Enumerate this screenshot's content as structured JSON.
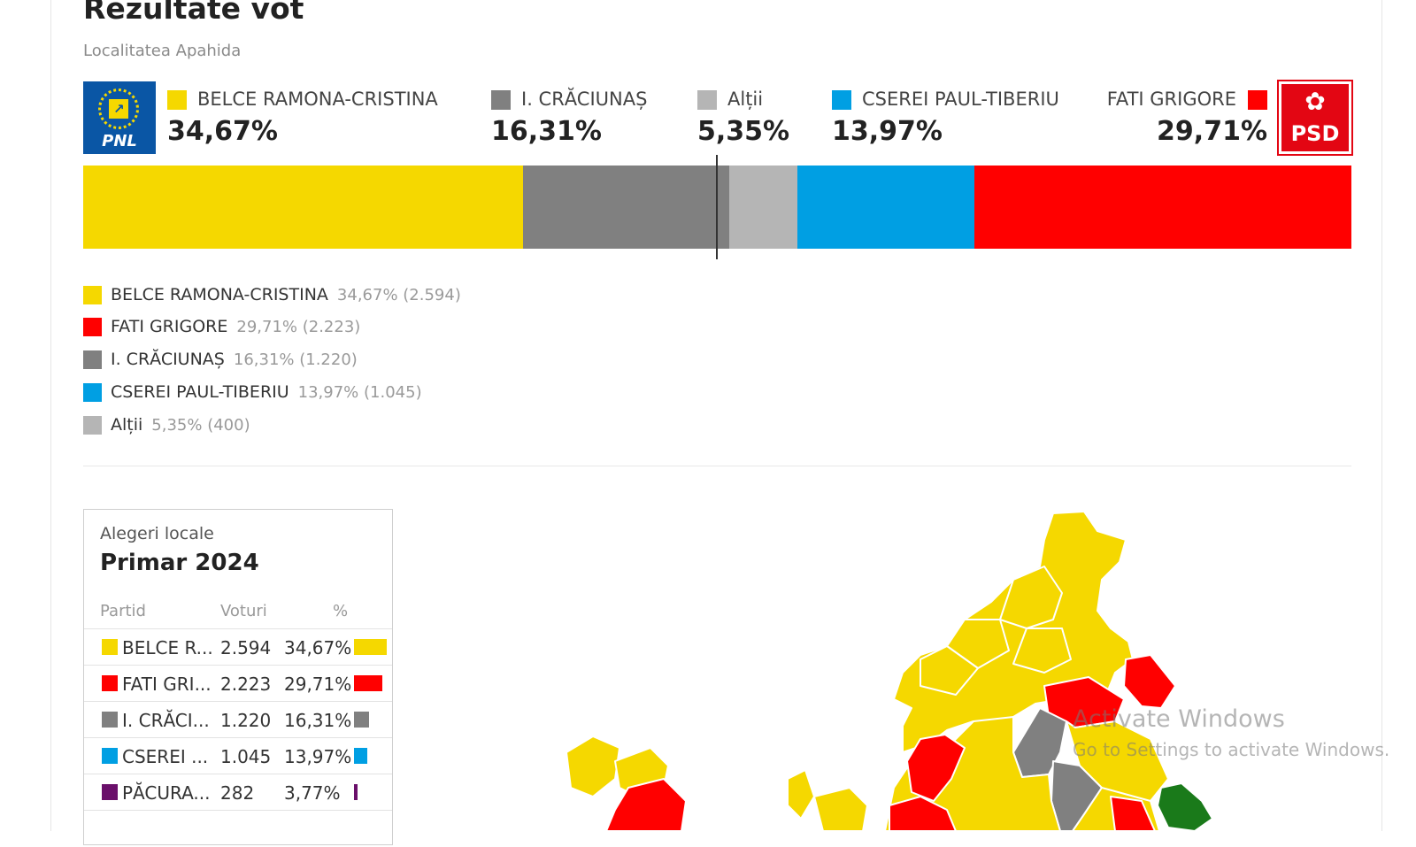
{
  "header": {
    "title": "Rezultate vot",
    "subtitle": "Localitatea Apahida"
  },
  "logos": {
    "left": "PNL",
    "right": "PSD"
  },
  "candidates_top": [
    {
      "name": "BELCE RAMONA-CRISTINA",
      "pct": "34,67%",
      "color": "#f5d800"
    },
    {
      "name": "I. CRĂCIUNAȘ",
      "pct": "16,31%",
      "color": "#808080"
    },
    {
      "name": "Alții",
      "pct": "5,35%",
      "color": "#b5b5b5"
    },
    {
      "name": "CSEREI PAUL-TIBERIU",
      "pct": "13,97%",
      "color": "#009fe3"
    },
    {
      "name": "FATI GRIGORE",
      "pct": "29,71%",
      "color": "#ff0000"
    }
  ],
  "bar_segments": [
    {
      "label": "BELCE RAMONA-CRISTINA",
      "value": 34.67,
      "color": "#f5d800"
    },
    {
      "label": "I. CRĂCIUNAȘ",
      "value": 16.31,
      "color": "#808080"
    },
    {
      "label": "Alții",
      "value": 5.35,
      "color": "#b5b5b5"
    },
    {
      "label": "CSEREI PAUL-TIBERIU",
      "value": 13.97,
      "color": "#009fe3"
    },
    {
      "label": "FATI GRIGORE",
      "value": 29.71,
      "color": "#ff0000"
    }
  ],
  "legend": [
    {
      "name": "BELCE RAMONA-CRISTINA",
      "value": "34,67% (2.594)",
      "color": "#f5d800"
    },
    {
      "name": "FATI GRIGORE",
      "value": "29,71% (2.223)",
      "color": "#ff0000"
    },
    {
      "name": "I. CRĂCIUNAȘ",
      "value": "16,31% (1.220)",
      "color": "#808080"
    },
    {
      "name": "CSEREI PAUL-TIBERIU",
      "value": "13,97% (1.045)",
      "color": "#009fe3"
    },
    {
      "name": "Alții",
      "value": "5,35% (400)",
      "color": "#b5b5b5"
    }
  ],
  "card": {
    "label": "Alegeri locale",
    "heading": "Primar 2024",
    "columns": [
      "Partid",
      "Voturi",
      "%"
    ],
    "rows": [
      {
        "name": "BELCE R...",
        "votes": "2.594",
        "pct": "34,67%",
        "share": 34.67,
        "color": "#f5d800"
      },
      {
        "name": "FATI GRI...",
        "votes": "2.223",
        "pct": "29,71%",
        "share": 29.71,
        "color": "#ff0000"
      },
      {
        "name": "I. CRĂCI...",
        "votes": "1.220",
        "pct": "16,31%",
        "share": 16.31,
        "color": "#808080"
      },
      {
        "name": "CSEREI ...",
        "votes": "1.045",
        "pct": "13,97%",
        "share": 13.97,
        "color": "#009fe3"
      },
      {
        "name": "PĂCURA...",
        "votes": "282",
        "pct": "3,77%",
        "share": 3.77,
        "color": "#6a0f6a"
      }
    ]
  },
  "watermark": {
    "line1": "Activate Windows",
    "line2": "Go to Settings to activate Windows."
  }
}
